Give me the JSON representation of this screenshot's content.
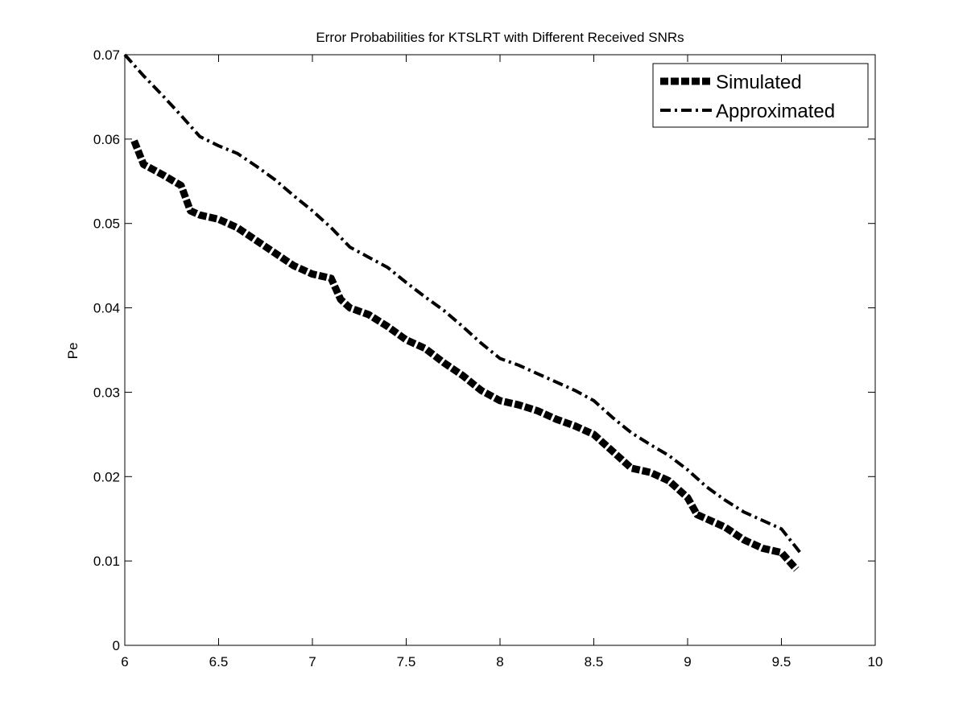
{
  "chart_data": {
    "type": "line",
    "title": "Error Probabilities for KTSLRT with Different Received SNRs",
    "xlabel": "",
    "ylabel": "Pe",
    "xlim": [
      6,
      10
    ],
    "ylim": [
      0,
      0.07
    ],
    "xticks": [
      "6",
      "6.5",
      "7",
      "7.5",
      "8",
      "8.5",
      "9",
      "9.5",
      "10"
    ],
    "yticks": [
      "0",
      "0.01",
      "0.02",
      "0.03",
      "0.04",
      "0.05",
      "0.06",
      "0.07"
    ],
    "grid": false,
    "legend_position": "top-right",
    "series": [
      {
        "name": "Simulated",
        "style": "thick-dashed",
        "color": "#000000",
        "x": [
          6.05,
          6.1,
          6.2,
          6.3,
          6.35,
          6.4,
          6.5,
          6.6,
          6.7,
          6.8,
          6.9,
          7.0,
          7.1,
          7.15,
          7.2,
          7.3,
          7.4,
          7.5,
          7.6,
          7.7,
          7.8,
          7.9,
          8.0,
          8.1,
          8.2,
          8.3,
          8.4,
          8.5,
          8.6,
          8.7,
          8.8,
          8.9,
          9.0,
          9.05,
          9.1,
          9.2,
          9.3,
          9.4,
          9.5,
          9.58
        ],
        "values": [
          0.0598,
          0.057,
          0.0558,
          0.0545,
          0.0515,
          0.051,
          0.0505,
          0.0495,
          0.048,
          0.0465,
          0.045,
          0.044,
          0.0435,
          0.041,
          0.04,
          0.0392,
          0.0378,
          0.0362,
          0.0352,
          0.0335,
          0.032,
          0.0302,
          0.029,
          0.0285,
          0.0278,
          0.0268,
          0.026,
          0.025,
          0.023,
          0.021,
          0.0205,
          0.0195,
          0.0175,
          0.0155,
          0.015,
          0.014,
          0.0125,
          0.0115,
          0.011,
          0.009
        ]
      },
      {
        "name": "Approximated",
        "style": "dash-dot",
        "color": "#000000",
        "x": [
          6.0,
          6.1,
          6.2,
          6.3,
          6.4,
          6.5,
          6.6,
          6.7,
          6.8,
          6.9,
          7.0,
          7.1,
          7.2,
          7.3,
          7.4,
          7.5,
          7.6,
          7.7,
          7.8,
          7.9,
          8.0,
          8.1,
          8.2,
          8.3,
          8.4,
          8.5,
          8.6,
          8.7,
          8.8,
          8.9,
          9.0,
          9.1,
          9.2,
          9.3,
          9.4,
          9.5,
          9.6
        ],
        "values": [
          0.07,
          0.0675,
          0.0652,
          0.0628,
          0.0603,
          0.0592,
          0.0583,
          0.0568,
          0.0552,
          0.0533,
          0.0515,
          0.0495,
          0.0472,
          0.046,
          0.0448,
          0.043,
          0.0413,
          0.0397,
          0.0378,
          0.0358,
          0.034,
          0.0332,
          0.0322,
          0.0312,
          0.0302,
          0.029,
          0.027,
          0.0252,
          0.0238,
          0.0225,
          0.0208,
          0.0188,
          0.0172,
          0.0158,
          0.0148,
          0.0138,
          0.011
        ]
      }
    ]
  }
}
